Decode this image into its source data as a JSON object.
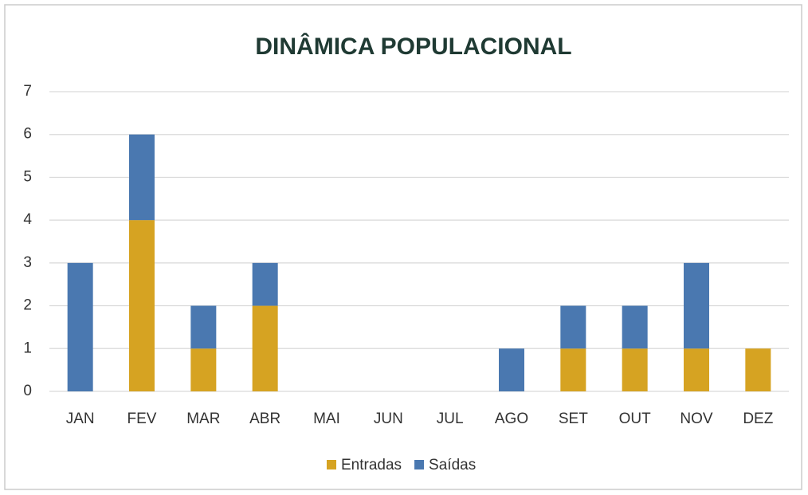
{
  "chart_data": {
    "type": "stacked_bar",
    "title": "DINÂMICA POPULACIONAL",
    "categories": [
      "JAN",
      "FEV",
      "MAR",
      "ABR",
      "MAI",
      "JUN",
      "JUL",
      "AGO",
      "SET",
      "OUT",
      "NOV",
      "DEZ"
    ],
    "series": [
      {
        "name": "Entradas",
        "color": "#d6a322",
        "values": [
          0,
          4,
          1,
          2,
          0,
          0,
          0,
          0,
          1,
          1,
          1,
          1
        ]
      },
      {
        "name": "Saídas",
        "color": "#4a78b0",
        "values": [
          3,
          2,
          1,
          1,
          0,
          0,
          0,
          1,
          1,
          1,
          2,
          0
        ]
      }
    ],
    "ylim": [
      0,
      7
    ],
    "yticks": [
      0,
      1,
      2,
      3,
      4,
      5,
      6,
      7
    ],
    "grid": true,
    "legend": "bottom"
  }
}
